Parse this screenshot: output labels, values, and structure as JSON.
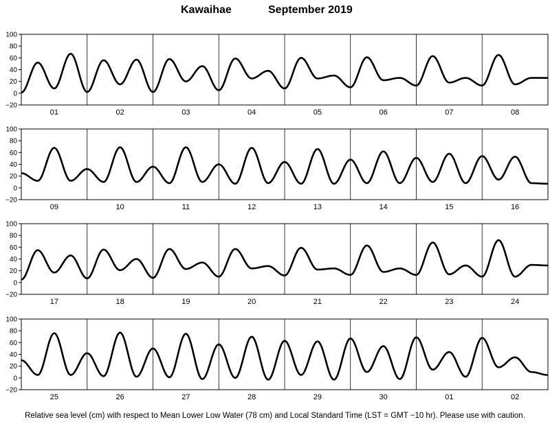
{
  "title": {
    "location": "Kawaihae",
    "month": "September   2019"
  },
  "footer_note": "Relative sea level (cm) with respect to Mean Lower Low Water (78 cm) and Local Standard Time (LST = GMT −10 hr). Please use with caution.",
  "chart_data": [
    {
      "type": "line",
      "ylim": [
        -20,
        100
      ],
      "yticks": [
        "100",
        "80",
        "60",
        "40",
        "20",
        "0",
        "−20"
      ],
      "categories": [
        "01",
        "02",
        "03",
        "04",
        "05",
        "06",
        "07",
        "08"
      ],
      "series": [
        {
          "values": [
            [
              0,
              1
            ],
            [
              0.25,
              52
            ],
            [
              0.5,
              8
            ],
            [
              0.75,
              67
            ],
            [
              1,
              2
            ],
            [
              1.25,
              56
            ],
            [
              1.5,
              15
            ],
            [
              1.75,
              57
            ],
            [
              2,
              2
            ],
            [
              2.25,
              58
            ],
            [
              2.5,
              20
            ],
            [
              2.75,
              46
            ],
            [
              3,
              5
            ],
            [
              3.25,
              59
            ],
            [
              3.5,
              25
            ],
            [
              3.75,
              38
            ],
            [
              4,
              8
            ],
            [
              4.25,
              60
            ],
            [
              4.5,
              25
            ],
            [
              4.75,
              30
            ],
            [
              5,
              10
            ],
            [
              5.25,
              61
            ],
            [
              5.5,
              22
            ],
            [
              5.75,
              26
            ],
            [
              6,
              13
            ],
            [
              6.25,
              63
            ],
            [
              6.5,
              18
            ],
            [
              6.75,
              26
            ],
            [
              7,
              13
            ],
            [
              7.25,
              65
            ],
            [
              7.5,
              15
            ],
            [
              7.75,
              26
            ],
            [
              8,
              26
            ]
          ]
        }
      ]
    },
    {
      "type": "line",
      "ylim": [
        -20,
        100
      ],
      "yticks": [
        "100",
        "80",
        "60",
        "40",
        "20",
        "0",
        "−20"
      ],
      "categories": [
        "09",
        "10",
        "11",
        "12",
        "13",
        "14",
        "15",
        "16"
      ],
      "series": [
        {
          "values": [
            [
              0,
              25
            ],
            [
              0.25,
              12
            ],
            [
              0.5,
              68
            ],
            [
              0.75,
              12
            ],
            [
              1,
              32
            ],
            [
              1.25,
              10
            ],
            [
              1.5,
              69
            ],
            [
              1.75,
              10
            ],
            [
              2,
              36
            ],
            [
              2.25,
              8
            ],
            [
              2.5,
              69
            ],
            [
              2.75,
              10
            ],
            [
              3,
              40
            ],
            [
              3.25,
              7
            ],
            [
              3.5,
              68
            ],
            [
              3.75,
              8
            ],
            [
              4,
              44
            ],
            [
              4.25,
              7
            ],
            [
              4.5,
              66
            ],
            [
              4.75,
              7
            ],
            [
              5,
              48
            ],
            [
              5.25,
              8
            ],
            [
              5.5,
              62
            ],
            [
              5.75,
              8
            ],
            [
              6,
              51
            ],
            [
              6.25,
              10
            ],
            [
              6.5,
              58
            ],
            [
              6.75,
              8
            ],
            [
              7,
              54
            ],
            [
              7.25,
              14
            ],
            [
              7.5,
              53
            ],
            [
              7.75,
              8
            ],
            [
              8,
              7
            ]
          ]
        }
      ]
    },
    {
      "type": "line",
      "ylim": [
        -20,
        100
      ],
      "yticks": [
        "100",
        "80",
        "60",
        "40",
        "20",
        "0",
        "−20"
      ],
      "categories": [
        "17",
        "18",
        "19",
        "20",
        "21",
        "22",
        "23",
        "24"
      ],
      "series": [
        {
          "values": [
            [
              0,
              5
            ],
            [
              0.25,
              55
            ],
            [
              0.5,
              17
            ],
            [
              0.75,
              46
            ],
            [
              1,
              7
            ],
            [
              1.25,
              56
            ],
            [
              1.5,
              21
            ],
            [
              1.75,
              40
            ],
            [
              2,
              8
            ],
            [
              2.25,
              57
            ],
            [
              2.5,
              23
            ],
            [
              2.75,
              34
            ],
            [
              3,
              10
            ],
            [
              3.25,
              57
            ],
            [
              3.5,
              24
            ],
            [
              3.75,
              28
            ],
            [
              4,
              12
            ],
            [
              4.25,
              59
            ],
            [
              4.5,
              22
            ],
            [
              4.75,
              24
            ],
            [
              5,
              13
            ],
            [
              5.25,
              63
            ],
            [
              5.5,
              18
            ],
            [
              5.75,
              24
            ],
            [
              6,
              13
            ],
            [
              6.25,
              68
            ],
            [
              6.5,
              14
            ],
            [
              6.75,
              29
            ],
            [
              7,
              10
            ],
            [
              7.25,
              72
            ],
            [
              7.5,
              10
            ],
            [
              7.75,
              30
            ],
            [
              8,
              29
            ]
          ]
        }
      ]
    },
    {
      "type": "line",
      "ylim": [
        -20,
        100
      ],
      "yticks": [
        "100",
        "80",
        "60",
        "40",
        "20",
        "0",
        "−20"
      ],
      "categories": [
        "25",
        "26",
        "27",
        "28",
        "29",
        "30",
        "01",
        "02"
      ],
      "series": [
        {
          "values": [
            [
              0,
              30
            ],
            [
              0.25,
              5
            ],
            [
              0.5,
              76
            ],
            [
              0.75,
              5
            ],
            [
              1,
              42
            ],
            [
              1.25,
              3
            ],
            [
              1.5,
              77
            ],
            [
              1.75,
              2
            ],
            [
              2,
              50
            ],
            [
              2.25,
              1
            ],
            [
              2.5,
              75
            ],
            [
              2.75,
              -2
            ],
            [
              3,
              57
            ],
            [
              3.25,
              0
            ],
            [
              3.5,
              70
            ],
            [
              3.75,
              -3
            ],
            [
              4,
              63
            ],
            [
              4.25,
              5
            ],
            [
              4.5,
              62
            ],
            [
              4.75,
              -3
            ],
            [
              5,
              67
            ],
            [
              5.25,
              10
            ],
            [
              5.5,
              54
            ],
            [
              5.75,
              -2
            ],
            [
              6,
              69
            ],
            [
              6.25,
              14
            ],
            [
              6.5,
              44
            ],
            [
              6.75,
              2
            ],
            [
              7,
              68
            ],
            [
              7.25,
              18
            ],
            [
              7.5,
              35
            ],
            [
              7.75,
              10
            ],
            [
              8,
              5
            ]
          ]
        }
      ]
    }
  ]
}
